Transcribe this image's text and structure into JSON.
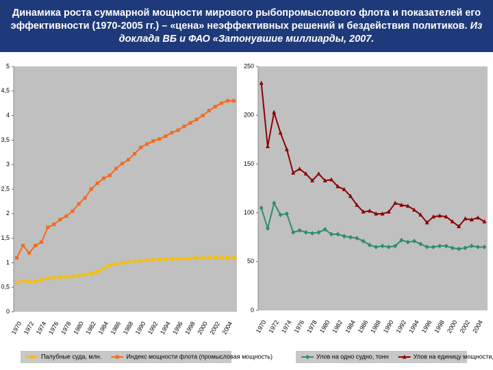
{
  "title": "Динамика роста суммарной мощности мирового рыбопромыслового флота и показателей его эффективности (1970-2005 гг.) – «цена» неэффективных решений и бездействия политиков.",
  "source": "Из доклада ВБ и ФАО «Затонувшие миллиарды, 2007.",
  "chart_data": [
    {
      "type": "line",
      "categories": [
        "1970",
        null,
        "1972",
        null,
        "1974",
        null,
        "1976",
        null,
        "1978",
        null,
        "1980",
        null,
        "1982",
        null,
        "1984",
        null,
        "1986",
        null,
        "1988",
        null,
        "1990",
        null,
        "1992",
        null,
        "1994",
        null,
        "1996",
        null,
        "1998",
        null,
        "2000",
        null,
        "2002",
        null,
        "2004",
        null
      ],
      "series": [
        {
          "name": "Палубные суда, млн.",
          "color": "#f5c000",
          "marker": "square",
          "values": [
            0.6,
            0.63,
            0.62,
            0.62,
            0.65,
            0.68,
            0.7,
            0.7,
            0.71,
            0.72,
            0.74,
            0.76,
            0.78,
            0.82,
            0.88,
            0.95,
            0.97,
            1.0,
            1.02,
            1.03,
            1.04,
            1.05,
            1.06,
            1.07,
            1.07,
            1.08,
            1.08,
            1.08,
            1.09,
            1.1,
            1.1,
            1.1,
            1.1,
            1.1,
            1.1,
            1.1
          ]
        },
        {
          "name": "Индекс мощности флота (промысловая мощность)",
          "color": "#f26b1f",
          "marker": "square",
          "values": [
            1.1,
            1.35,
            1.2,
            1.35,
            1.42,
            1.72,
            1.78,
            1.88,
            1.95,
            2.05,
            2.2,
            2.32,
            2.5,
            2.62,
            2.72,
            2.78,
            2.92,
            3.02,
            3.1,
            3.22,
            3.35,
            3.42,
            3.48,
            3.52,
            3.58,
            3.65,
            3.7,
            3.78,
            3.85,
            3.92,
            4.0,
            4.1,
            4.18,
            4.25,
            4.3,
            4.3
          ]
        }
      ],
      "ylim": [
        0,
        5
      ],
      "yticks": [
        0,
        {
          "value": 0.5,
          "label": "0,5"
        },
        1,
        {
          "value": 1.5,
          "label": "1,5"
        },
        2,
        {
          "value": 2.5,
          "label": "2,5"
        },
        3,
        {
          "value": 3.5,
          "label": "3,5"
        },
        4,
        {
          "value": 4.5,
          "label": "4,5"
        },
        5
      ],
      "grid": false,
      "legend": "bottom"
    },
    {
      "type": "line",
      "categories": [
        "1970",
        null,
        "1972",
        null,
        "1974",
        null,
        "1976",
        null,
        "1978",
        null,
        "1980",
        null,
        "1982",
        null,
        "1984",
        null,
        "1986",
        null,
        "1988",
        null,
        "1990",
        null,
        "1992",
        null,
        "1994",
        null,
        "1996",
        null,
        "1998",
        null,
        "2000",
        null,
        "2002",
        null,
        "2004",
        null
      ],
      "series": [
        {
          "name": "Улов на одно судно, тонн",
          "color": "#2e8b72",
          "marker": "diamond",
          "values": [
            105,
            84,
            110,
            98,
            99,
            80,
            82,
            80,
            79,
            80,
            83,
            78,
            78,
            76,
            75,
            74,
            71,
            67,
            65,
            66,
            65,
            66,
            72,
            70,
            71,
            68,
            65,
            65,
            66,
            66,
            64,
            63,
            64,
            66,
            65,
            65
          ]
        },
        {
          "name": "Улов на единицу мощности, тонн",
          "color": "#8b0000",
          "marker": "triangle",
          "values": [
            233,
            168,
            203,
            182,
            165,
            141,
            145,
            140,
            133,
            140,
            133,
            134,
            127,
            124,
            117,
            108,
            101,
            102,
            99,
            99,
            101,
            110,
            108,
            107,
            103,
            98,
            90,
            96,
            97,
            96,
            91,
            86,
            94,
            93,
            95,
            91
          ]
        }
      ],
      "ylim": [
        0,
        250
      ],
      "yticks": [
        0,
        50,
        100,
        150,
        200,
        250
      ],
      "grid": false,
      "legend": "bottom"
    }
  ]
}
